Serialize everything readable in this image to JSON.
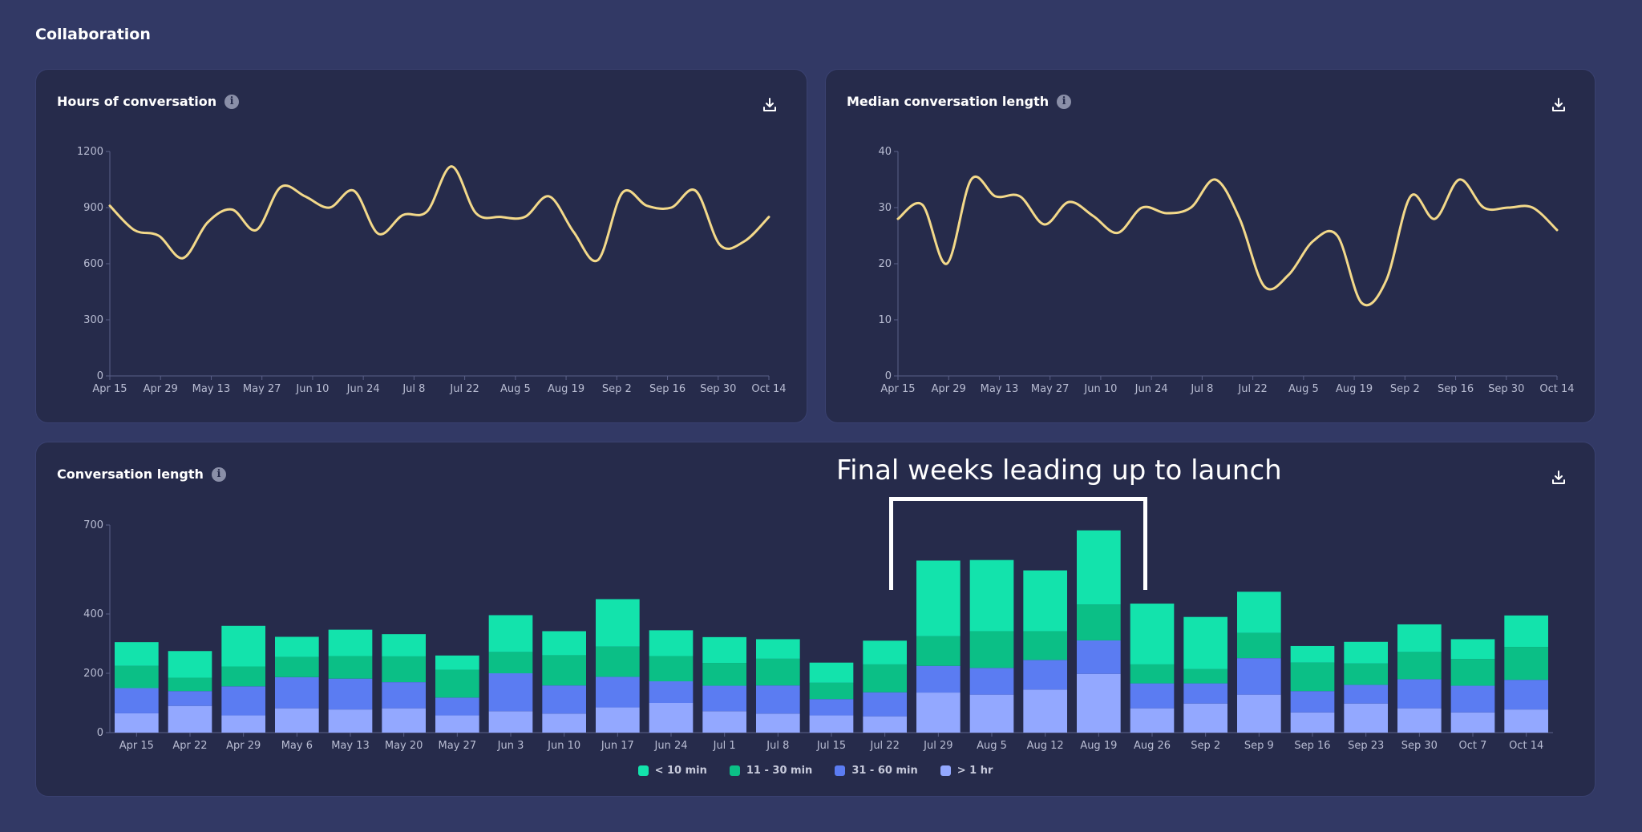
{
  "page": {
    "section_title": "Collaboration"
  },
  "colors": {
    "line": "#f3d98a",
    "seg_lt10": "#13e3ac",
    "seg_11_30": "#0bbf86",
    "seg_31_60": "#5b7cf2",
    "seg_gt1h": "#93a8ff",
    "axis": "#5a6088",
    "tick_text": "#b9bdd3"
  },
  "cards": {
    "hours": {
      "title": "Hours of conversation"
    },
    "median": {
      "title": "Median conversation length"
    },
    "length": {
      "title": "Conversation length"
    }
  },
  "annotation": {
    "text": "Final weeks leading up to launch"
  },
  "chart_data": [
    {
      "id": "hours",
      "type": "line",
      "title": "Hours of conversation",
      "ylim": [
        0,
        1200
      ],
      "yticks": [
        0,
        300,
        600,
        900,
        1200
      ],
      "xticks": [
        "Apr 15",
        "Apr 29",
        "May 13",
        "May 27",
        "Jun 10",
        "Jun 24",
        "Jul 8",
        "Jul 22",
        "Aug 5",
        "Aug 19",
        "Sep 2",
        "Sep 16",
        "Sep 30",
        "Oct 14"
      ],
      "x": [
        0,
        1,
        2,
        3,
        4,
        5,
        6,
        7,
        8,
        9,
        10,
        11,
        12,
        13,
        14,
        15,
        16,
        17,
        18,
        19,
        20,
        21,
        22,
        23,
        24,
        25,
        26,
        27
      ],
      "values": [
        910,
        780,
        750,
        630,
        820,
        890,
        780,
        1010,
        960,
        900,
        990,
        760,
        860,
        880,
        1120,
        870,
        850,
        850,
        960,
        770,
        620,
        980,
        910,
        900,
        990,
        700,
        720,
        850
      ]
    },
    {
      "id": "median",
      "type": "line",
      "title": "Median conversation length",
      "ylim": [
        0,
        40
      ],
      "yticks": [
        0,
        10,
        20,
        30,
        40
      ],
      "xticks": [
        "Apr 15",
        "Apr 29",
        "May 13",
        "May 27",
        "Jun 10",
        "Jun 24",
        "Jul 8",
        "Jul 22",
        "Aug 5",
        "Aug 19",
        "Sep 2",
        "Sep 16",
        "Sep 30",
        "Oct 14"
      ],
      "x": [
        0,
        1,
        2,
        3,
        4,
        5,
        6,
        7,
        8,
        9,
        10,
        11,
        12,
        13,
        14,
        15,
        16,
        17,
        18,
        19,
        20,
        21,
        22,
        23,
        24,
        25,
        26,
        27
      ],
      "values": [
        28,
        30.5,
        20,
        35,
        32,
        32,
        27,
        31,
        28.5,
        25.5,
        30,
        29,
        30,
        35,
        28,
        16,
        18,
        24,
        25,
        13,
        17,
        32,
        28,
        35,
        30,
        30,
        30,
        26
      ]
    },
    {
      "id": "length",
      "type": "bar",
      "stacked": true,
      "title": "Conversation length",
      "ylim": [
        0,
        700
      ],
      "yticks": [
        0,
        200,
        400,
        700
      ],
      "categories": [
        "Apr 15",
        "Apr 22",
        "Apr 29",
        "May 6",
        "May 13",
        "May 20",
        "May 27",
        "Jun 3",
        "Jun 10",
        "Jun 17",
        "Jun 24",
        "Jul 1",
        "Jul 8",
        "Jul 15",
        "Jul 22",
        "Jul 29",
        "Aug 5",
        "Aug 12",
        "Aug 19",
        "Aug 26",
        "Sep 2",
        "Sep 9",
        "Sep 16",
        "Sep 23",
        "Sep 30",
        "Oct 7",
        "Oct 14"
      ],
      "series": [
        {
          "name": "> 1 hr",
          "values": [
            65,
            90,
            58,
            82,
            78,
            82,
            58,
            72,
            64,
            85,
            100,
            72,
            64,
            58,
            55,
            135,
            128,
            145,
            198,
            82,
            98,
            128,
            68,
            98,
            82,
            68,
            78
          ]
        },
        {
          "name": "31 - 60 min",
          "values": [
            85,
            50,
            98,
            105,
            104,
            88,
            60,
            128,
            95,
            103,
            73,
            86,
            95,
            55,
            81,
            90,
            90,
            100,
            113,
            84,
            68,
            123,
            72,
            63,
            98,
            90,
            100
          ]
        },
        {
          "name": "11 - 30 min",
          "values": [
            75,
            45,
            67,
            68,
            76,
            87,
            94,
            72,
            102,
            102,
            85,
            77,
            90,
            55,
            94,
            100,
            124,
            97,
            121,
            64,
            48,
            85,
            96,
            72,
            92,
            90,
            111
          ]
        },
        {
          "name": "< 10 min",
          "values": [
            80,
            90,
            137,
            68,
            89,
            75,
            48,
            124,
            81,
            160,
            87,
            87,
            66,
            68,
            80,
            255,
            240,
            205,
            250,
            205,
            176,
            139,
            56,
            73,
            93,
            67,
            106
          ]
        }
      ],
      "legend": [
        "< 10 min",
        "11 - 30 min",
        "31 - 60 min",
        "> 1 hr"
      ]
    }
  ]
}
